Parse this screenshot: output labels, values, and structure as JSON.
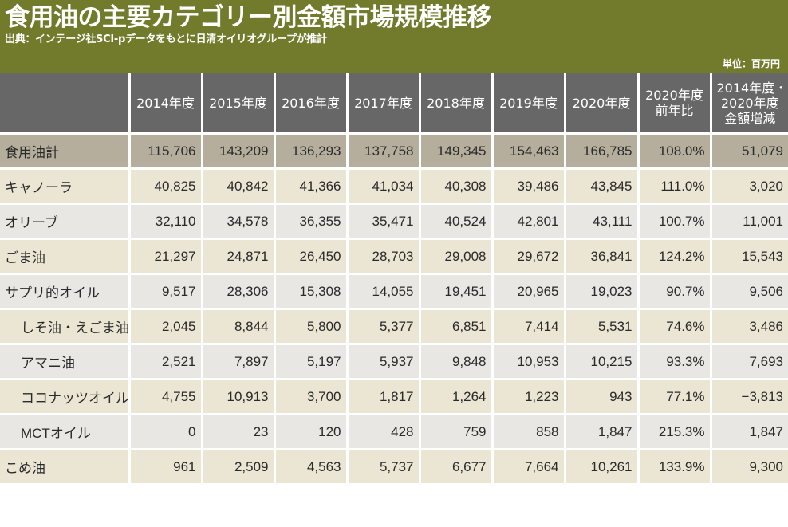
{
  "header": {
    "title": "食用油の主要カテゴリー別金額市場規模推移",
    "subtitle": "出典：インテージ社SCI-pデータをもとに日清オイリオグループが推計",
    "unit": "単位：百万円"
  },
  "colors": {
    "banner": "#727a2b",
    "header_row": "#666766",
    "total_row": "#b5ae9d",
    "beige_row": "#ebe5d3",
    "gray_row": "#e9e7e3"
  },
  "table": {
    "columns": [
      "",
      "2014年度",
      "2015年度",
      "2016年度",
      "2017年度",
      "2018年度",
      "2019年度",
      "2020年度",
      "2020年度\n前年比",
      "2014年度・\n2020年度\n金額増減"
    ],
    "column_lines": {
      "c8": [
        "2020年度",
        "前年比"
      ],
      "c9": [
        "2014年度・",
        "2020年度",
        "金額増減"
      ]
    },
    "rows": [
      {
        "label": "食用油計",
        "indent": false,
        "style": "total",
        "cells": [
          "115,706",
          "143,209",
          "136,293",
          "137,758",
          "149,345",
          "154,463",
          "166,785",
          "108.0%",
          "51,079"
        ]
      },
      {
        "label": "キャノーラ",
        "indent": false,
        "style": "beige",
        "cells": [
          "40,825",
          "40,842",
          "41,366",
          "41,034",
          "40,308",
          "39,486",
          "43,845",
          "111.0%",
          "3,020"
        ]
      },
      {
        "label": "オリーブ",
        "indent": false,
        "style": "gray",
        "cells": [
          "32,110",
          "34,578",
          "36,355",
          "35,471",
          "40,524",
          "42,801",
          "43,111",
          "100.7%",
          "11,001"
        ]
      },
      {
        "label": "ごま油",
        "indent": false,
        "style": "beige",
        "cells": [
          "21,297",
          "24,871",
          "26,450",
          "28,703",
          "29,008",
          "29,672",
          "36,841",
          "124.2%",
          "15,543"
        ]
      },
      {
        "label": "サプリ的オイル",
        "indent": false,
        "style": "gray",
        "cells": [
          "9,517",
          "28,306",
          "15,308",
          "14,055",
          "19,451",
          "20,965",
          "19,023",
          "90.7%",
          "9,506"
        ]
      },
      {
        "label": "しそ油・えごま油",
        "indent": true,
        "style": "beige",
        "cells": [
          "2,045",
          "8,844",
          "5,800",
          "5,377",
          "6,851",
          "7,414",
          "5,531",
          "74.6%",
          "3,486"
        ]
      },
      {
        "label": "アマニ油",
        "indent": true,
        "style": "gray",
        "cells": [
          "2,521",
          "7,897",
          "5,197",
          "5,937",
          "9,848",
          "10,953",
          "10,215",
          "93.3%",
          "7,693"
        ]
      },
      {
        "label": "ココナッツオイル",
        "indent": true,
        "style": "beige",
        "cells": [
          "4,755",
          "10,913",
          "3,700",
          "1,817",
          "1,264",
          "1,223",
          "943",
          "77.1%",
          "−3,813"
        ]
      },
      {
        "label": "MCTオイル",
        "indent": true,
        "style": "gray",
        "cells": [
          "0",
          "23",
          "120",
          "428",
          "759",
          "858",
          "1,847",
          "215.3%",
          "1,847"
        ]
      },
      {
        "label": "こめ油",
        "indent": false,
        "style": "beige",
        "cells": [
          "961",
          "2,509",
          "4,563",
          "5,737",
          "6,677",
          "7,664",
          "10,261",
          "133.9%",
          "9,300"
        ]
      }
    ]
  }
}
